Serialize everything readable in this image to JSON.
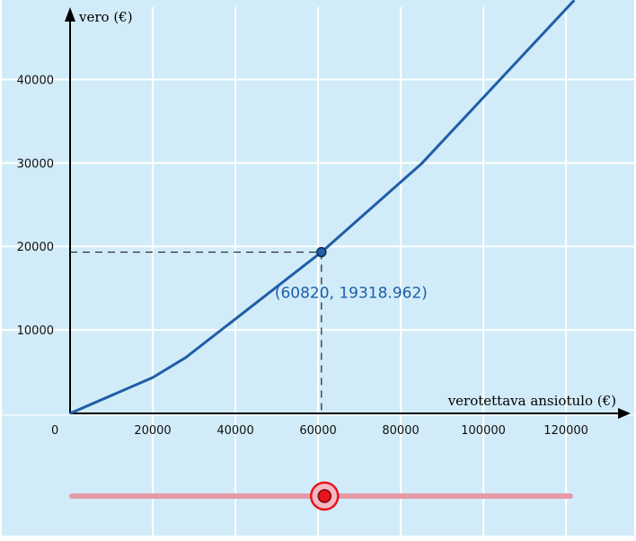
{
  "chart_data": {
    "type": "line",
    "x_label": "verotettava ansiotulo (€)",
    "y_label": "vero (€)",
    "x_ticks": [
      20000,
      40000,
      60000,
      80000,
      100000,
      120000
    ],
    "y_ticks": [
      10000,
      20000,
      30000,
      40000
    ],
    "origin_label": "0",
    "xlim": [
      -2000,
      132000
    ],
    "ylim": [
      0,
      49500
    ],
    "grid": true,
    "series": [
      {
        "color": "#1f5ea8",
        "x": [
          0,
          20000,
          28000,
          60820,
          85000,
          122000
        ],
        "y": [
          0,
          4300,
          6700,
          19318.962,
          29900,
          49500
        ]
      }
    ],
    "point": {
      "x": 60820,
      "y": 19318.962,
      "label": "(60820, 19318.962)"
    }
  },
  "slider": {
    "value": 60820,
    "min": 0,
    "max": 120000,
    "track_color": "#e59aa8",
    "knob_color": "#e8141b"
  }
}
